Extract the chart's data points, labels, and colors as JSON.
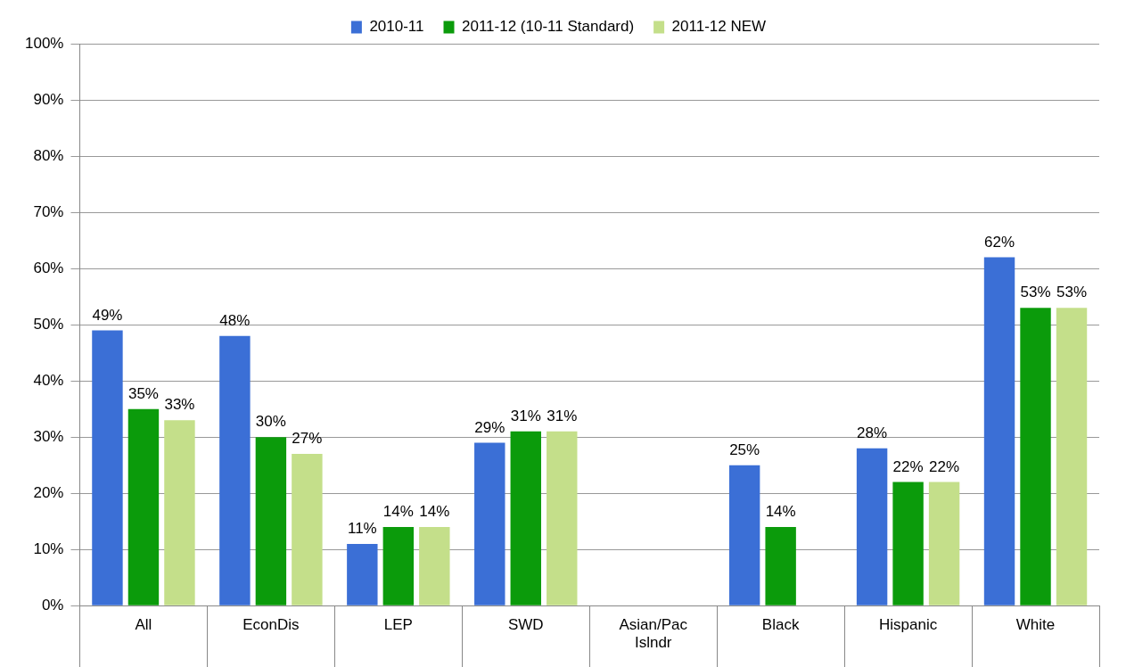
{
  "chart_data": {
    "type": "bar",
    "categories": [
      "All",
      "EconDis",
      "LEP",
      "SWD",
      "Asian/Pac Islndr",
      "Black",
      "Hispanic",
      "White"
    ],
    "series": [
      {
        "name": "2010-11",
        "color": "#3b6fd6",
        "values": [
          49,
          48,
          11,
          29,
          null,
          25,
          28,
          62
        ],
        "value_labels": [
          "49%",
          "48%",
          "11%",
          "29%",
          null,
          "25%",
          "28%",
          "62%"
        ]
      },
      {
        "name": "2011-12 (10-11 Standard)",
        "color": "#0b9b0b",
        "values": [
          35,
          30,
          14,
          31,
          null,
          14,
          22,
          53
        ],
        "value_labels": [
          "35%",
          "30%",
          "14%",
          "31%",
          null,
          "14%",
          "22%",
          "53%"
        ]
      },
      {
        "name": "2011-12 NEW",
        "color": "#c4df8a",
        "values": [
          33,
          27,
          14,
          31,
          null,
          null,
          22,
          53
        ],
        "value_labels": [
          "33%",
          "27%",
          "14%",
          "31%",
          null,
          null,
          "22%",
          "53%"
        ]
      }
    ],
    "ylim": [
      0,
      100
    ],
    "yticks": [
      {
        "value": 0,
        "label": "0%"
      },
      {
        "value": 10,
        "label": "10%"
      },
      {
        "value": 20,
        "label": "20%"
      },
      {
        "value": 30,
        "label": "30%"
      },
      {
        "value": 40,
        "label": "40%"
      },
      {
        "value": 50,
        "label": "50%"
      },
      {
        "value": 60,
        "label": "60%"
      },
      {
        "value": 70,
        "label": "70%"
      },
      {
        "value": 80,
        "label": "80%"
      },
      {
        "value": 90,
        "label": "90%"
      },
      {
        "value": 100,
        "label": "100%"
      }
    ],
    "grid": "y",
    "legend": "top"
  }
}
